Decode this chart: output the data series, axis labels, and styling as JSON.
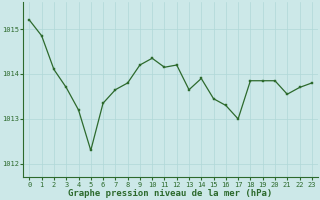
{
  "x": [
    0,
    1,
    2,
    3,
    4,
    5,
    6,
    7,
    8,
    9,
    10,
    11,
    12,
    13,
    14,
    15,
    16,
    17,
    18,
    19,
    20,
    21,
    22,
    23
  ],
  "y": [
    1015.2,
    1014.85,
    1014.1,
    1013.7,
    1013.2,
    1012.3,
    1013.35,
    1013.65,
    1013.8,
    1014.2,
    1014.35,
    1014.15,
    1014.2,
    1013.65,
    1013.9,
    1013.45,
    1013.3,
    1013.0,
    1013.85,
    1013.85,
    1013.85,
    1013.55,
    1013.7,
    1013.8
  ],
  "line_color": "#2d6a2d",
  "marker_color": "#2d6a2d",
  "bg_color": "#cce8e8",
  "grid_color": "#b0d8d8",
  "xlabel": "Graphe pression niveau de la mer (hPa)",
  "xlabel_fontsize": 6.5,
  "ylim": [
    1011.7,
    1015.6
  ],
  "yticks": [
    1012,
    1013,
    1014,
    1015
  ],
  "xticks": [
    0,
    1,
    2,
    3,
    4,
    5,
    6,
    7,
    8,
    9,
    10,
    11,
    12,
    13,
    14,
    15,
    16,
    17,
    18,
    19,
    20,
    21,
    22,
    23
  ],
  "tick_fontsize": 5.0,
  "line_width": 0.9,
  "marker_size": 2.0
}
